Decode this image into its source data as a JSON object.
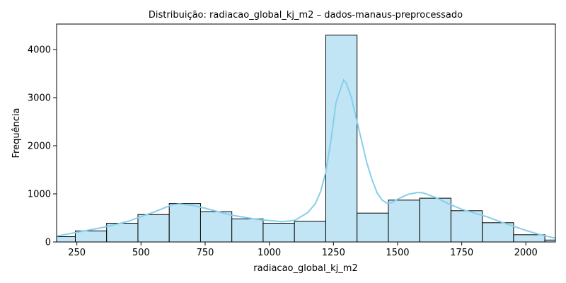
{
  "chart_data": {
    "type": "bar",
    "title": "Distribuição: radiacao_global_kj_m2 – dados-manaus-preprocessado",
    "xlabel": "radiacao_global_kj_m2",
    "ylabel": "Frequência",
    "xlim": [
      171,
      2115
    ],
    "ylim": [
      0,
      4530
    ],
    "xticks": [
      250,
      500,
      750,
      1000,
      1250,
      1500,
      1750,
      2000
    ],
    "yticks": [
      0,
      1000,
      2000,
      3000,
      4000
    ],
    "bins": [
      {
        "x0": 171,
        "x1": 244,
        "count": 110
      },
      {
        "x0": 244,
        "x1": 366,
        "count": 230
      },
      {
        "x0": 366,
        "x1": 488,
        "count": 390
      },
      {
        "x0": 488,
        "x1": 610,
        "count": 570
      },
      {
        "x0": 610,
        "x1": 732,
        "count": 800
      },
      {
        "x0": 732,
        "x1": 854,
        "count": 630
      },
      {
        "x0": 854,
        "x1": 976,
        "count": 480
      },
      {
        "x0": 976,
        "x1": 1098,
        "count": 390
      },
      {
        "x0": 1098,
        "x1": 1220,
        "count": 430
      },
      {
        "x0": 1220,
        "x1": 1342,
        "count": 4300
      },
      {
        "x0": 1342,
        "x1": 1464,
        "count": 600
      },
      {
        "x0": 1464,
        "x1": 1586,
        "count": 870
      },
      {
        "x0": 1586,
        "x1": 1708,
        "count": 910
      },
      {
        "x0": 1708,
        "x1": 1830,
        "count": 650
      },
      {
        "x0": 1830,
        "x1": 1952,
        "count": 400
      },
      {
        "x0": 1952,
        "x1": 2074,
        "count": 150
      },
      {
        "x0": 2074,
        "x1": 2115,
        "count": 40
      }
    ],
    "kde": {
      "x": [
        171,
        250,
        350,
        450,
        550,
        620,
        650,
        700,
        750,
        850,
        950,
        1050,
        1100,
        1150,
        1180,
        1200,
        1220,
        1240,
        1260,
        1280,
        1290,
        1300,
        1320,
        1340,
        1360,
        1380,
        1400,
        1420,
        1440,
        1460,
        1480,
        1500,
        1540,
        1580,
        1600,
        1650,
        1700,
        1750,
        1800,
        1850,
        1900,
        1950,
        2000,
        2050,
        2115
      ],
      "y": [
        120,
        200,
        300,
        430,
        620,
        770,
        790,
        760,
        700,
        560,
        470,
        420,
        450,
        610,
        800,
        1050,
        1450,
        2100,
        2900,
        3220,
        3370,
        3300,
        3000,
        2550,
        2100,
        1650,
        1300,
        1020,
        870,
        800,
        820,
        890,
        990,
        1030,
        1020,
        920,
        790,
        680,
        600,
        520,
        420,
        330,
        240,
        160,
        80
      ]
    },
    "colors": {
      "bar_fill": "#c1e5f5",
      "bar_edge": "#000000",
      "kde_line": "#87ceeb"
    },
    "grid": false
  }
}
